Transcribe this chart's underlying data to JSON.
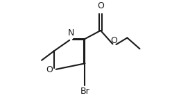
{
  "background": "#ffffff",
  "line_color": "#1a1a1a",
  "line_width": 1.5,
  "font_size": 9.0,
  "xlim": [
    -0.05,
    1.1
  ],
  "ylim": [
    0.05,
    0.98
  ]
}
